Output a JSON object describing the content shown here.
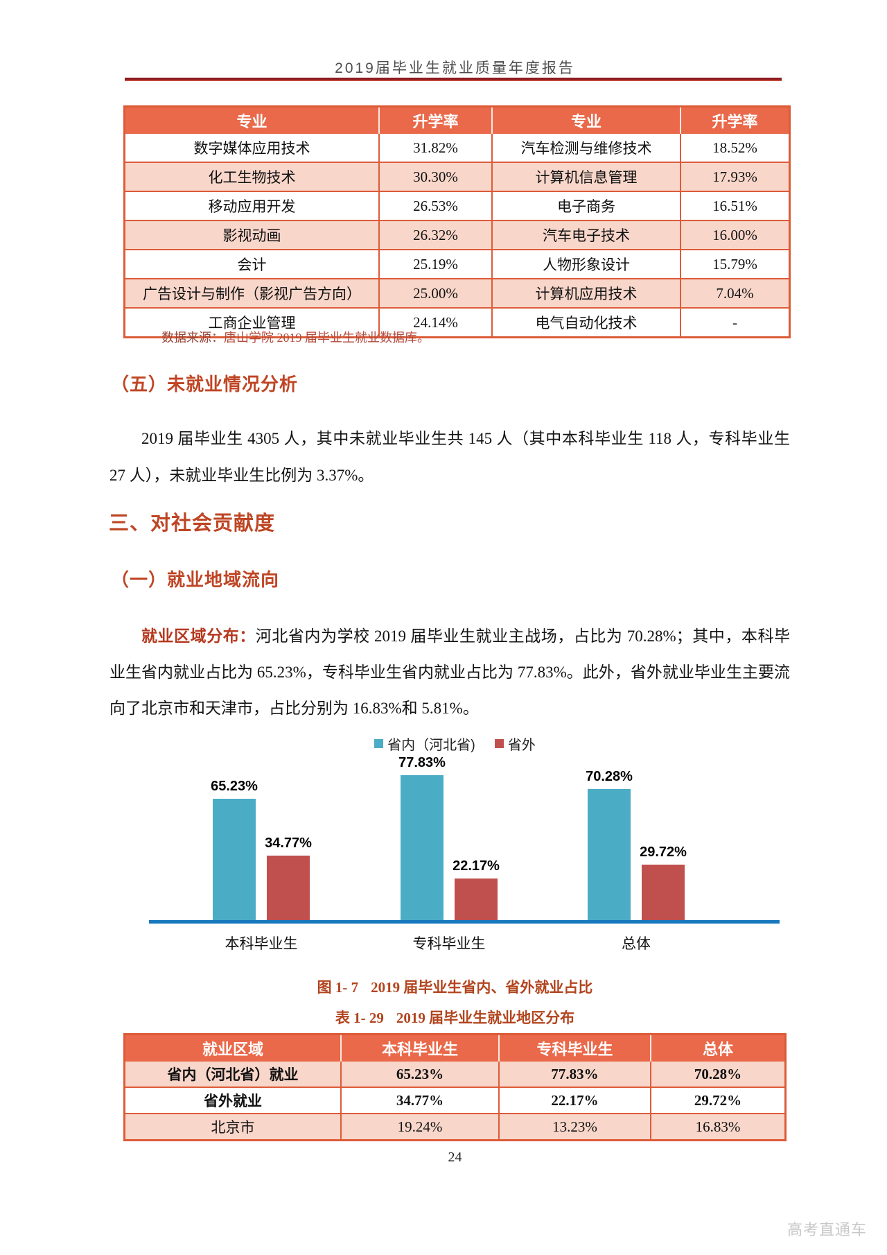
{
  "page": {
    "header_title": "2019届毕业生就业质量年度报告",
    "page_number": "24",
    "watermark": "高考直通车"
  },
  "rate_table": {
    "headers": [
      "专业",
      "升学率",
      "专业",
      "升学率"
    ],
    "rows": [
      [
        "数字媒体应用技术",
        "31.82%",
        "汽车检测与维修技术",
        "18.52%"
      ],
      [
        "化工生物技术",
        "30.30%",
        "计算机信息管理",
        "17.93%"
      ],
      [
        "移动应用开发",
        "26.53%",
        "电子商务",
        "16.51%"
      ],
      [
        "影视动画",
        "26.32%",
        "汽车电子技术",
        "16.00%"
      ],
      [
        "会计",
        "25.19%",
        "人物形象设计",
        "15.79%"
      ],
      [
        "广告设计与制作（影视广告方向）",
        "25.00%",
        "计算机应用技术",
        "7.04%"
      ],
      [
        "工商企业管理",
        "24.14%",
        "电气自动化技术",
        "-"
      ]
    ],
    "source_note_lead": "数据来源：",
    "source_note_rest": "唐山学院 2019 届毕业生就业数据库。"
  },
  "section_five": {
    "heading": "（五）未就业情况分析",
    "paragraph": "2019 届毕业生 4305 人，其中未就业毕业生共 145 人（其中本科毕业生 118 人，专科毕业生 27 人），未就业毕业生比例为 3.37%。"
  },
  "section_three": {
    "heading": "三、对社会贡献度",
    "sub_heading": "（一）就业地域流向",
    "para_lead": "就业区域分布：",
    "para_rest": "河北省内为学校 2019 届毕业生就业主战场，占比为 70.28%；其中，本科毕业生省内就业占比为 65.23%，专科毕业生省内就业占比为 77.83%。此外，省外就业毕业生主要流向了北京市和天津市，占比分别为 16.83%和 5.81%。"
  },
  "chart_data": {
    "type": "bar",
    "title": "",
    "categories": [
      "本科毕业生",
      "专科毕业生",
      "总体"
    ],
    "series": [
      {
        "name": "省内（河北省)",
        "color": "#4bacc6",
        "values": [
          65.23,
          77.83,
          70.28
        ]
      },
      {
        "name": "省外",
        "color": "#c0504d",
        "values": [
          34.77,
          22.17,
          29.72
        ]
      }
    ],
    "value_suffix": "%",
    "ylim": [
      0,
      80
    ],
    "grid": false,
    "legend_position": "top",
    "axis_line_color": "#1878be"
  },
  "figure_caption": {
    "label": "图 1- 7",
    "text": "2019 届毕业生省内、省外就业占比"
  },
  "region_table": {
    "caption_label": "表 1- 29",
    "caption_text": "2019 届毕业生就业地区分布",
    "headers": [
      "就业区域",
      "本科毕业生",
      "专科毕业生",
      "总体"
    ],
    "rows": [
      {
        "cells": [
          "省内（河北省）就业",
          "65.23%",
          "77.83%",
          "70.28%"
        ],
        "bold": true,
        "shaded": true
      },
      {
        "cells": [
          "省外就业",
          "34.77%",
          "22.17%",
          "29.72%"
        ],
        "bold": true,
        "shaded": false
      },
      {
        "cells": [
          "北京市",
          "19.24%",
          "13.23%",
          "16.83%"
        ],
        "bold": false,
        "shaded": true
      }
    ]
  },
  "colors": {
    "table_header_bg": "#e9694a",
    "table_row_shaded": "#f8d6ca",
    "table_border": "#dc5b37",
    "heading_red": "#c04524",
    "caption_red": "#b2441e",
    "title_rule_dark": "#8c1a1e",
    "bar_teal": "#4bacc6",
    "bar_red": "#c0504d",
    "axis_blue": "#1878be"
  }
}
